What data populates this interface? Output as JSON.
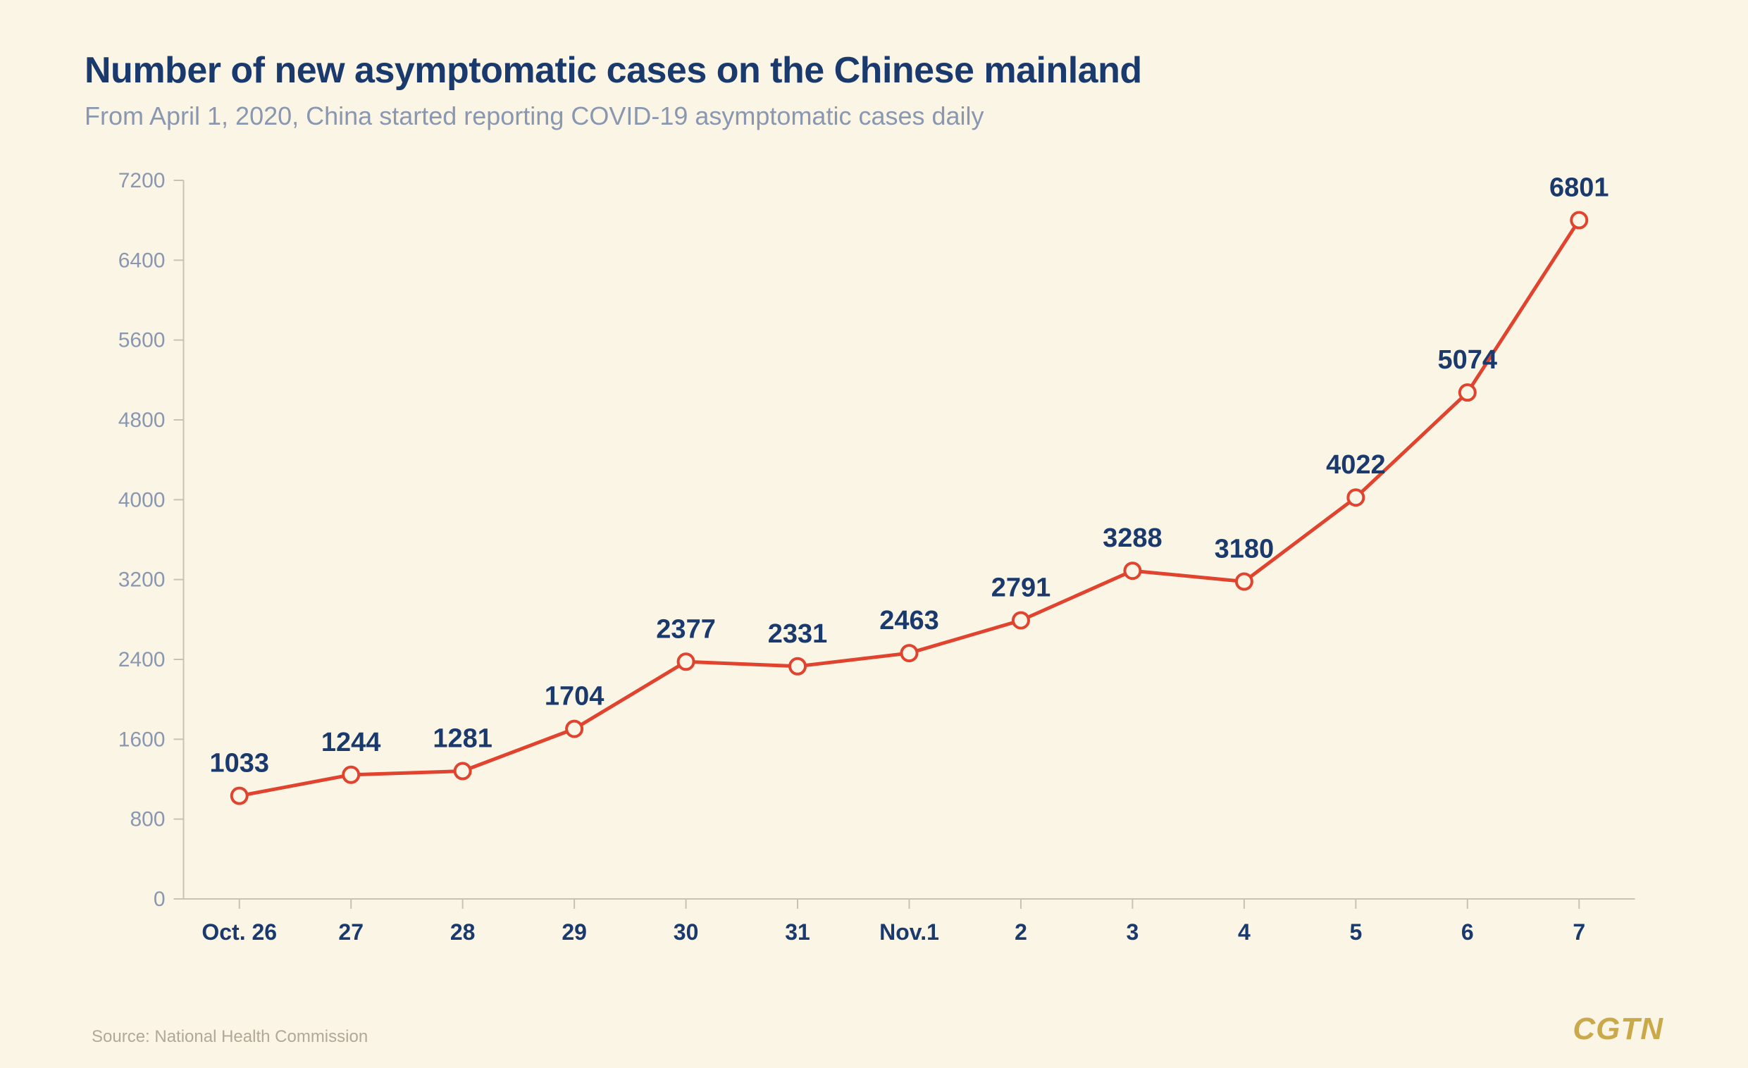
{
  "header": {
    "title": "Number of new asymptomatic cases on the Chinese mainland",
    "subtitle": "From April 1, 2020, China started reporting COVID-19 asymptomatic cases daily"
  },
  "chart": {
    "type": "line",
    "categories": [
      "Oct. 26",
      "27",
      "28",
      "29",
      "30",
      "31",
      "Nov.1",
      "2",
      "3",
      "4",
      "5",
      "6",
      "7"
    ],
    "values": [
      1033,
      1244,
      1281,
      1704,
      2377,
      2331,
      2463,
      2791,
      3288,
      3180,
      4022,
      5074,
      6801
    ],
    "ylim": [
      0,
      7200
    ],
    "ytick_step": 800,
    "line_color": "#e0432e",
    "line_width": 5,
    "marker_style": "circle",
    "marker_radius": 11,
    "marker_fill": "#fbf5e6",
    "marker_stroke": "#e0432e",
    "marker_stroke_width": 4,
    "axis_line_color": "#c7c2b2",
    "axis_line_width": 2,
    "tick_length": 14,
    "background_color": "#fbf5e6",
    "title_color": "#1a3a6e",
    "ytick_color": "#8a97b0",
    "xtick_color": "#1a3a6e",
    "data_label_font_size": 38,
    "title_fontsize": 52,
    "subtitle_fontsize": 36,
    "ytick_fontsize": 30,
    "xtick_fontsize": 32
  },
  "footer": {
    "source": "Source: National Health Commission",
    "logo": "CGTN"
  }
}
